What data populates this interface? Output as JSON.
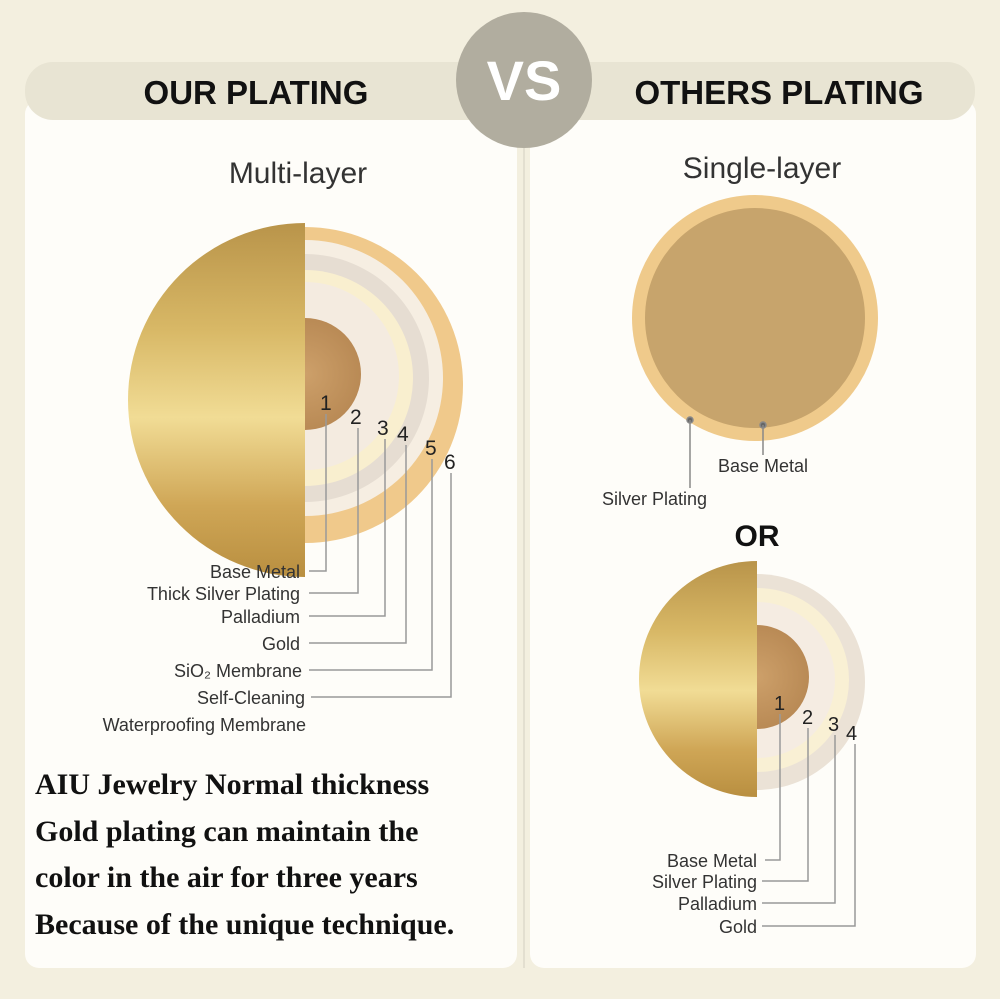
{
  "header": {
    "left_title": "OUR PLATING",
    "vs": "VS",
    "right_title": "OTHERS PLATING"
  },
  "left": {
    "subtitle": "Multi-layer",
    "numbers": [
      "1",
      "2",
      "3",
      "4",
      "5",
      "6"
    ],
    "layers": [
      "Base Metal",
      "Thick Silver Plating",
      "Palladium",
      "Gold",
      "SiO₂ Membrane",
      "Self-Cleaning",
      "Waterproofing Membrane"
    ]
  },
  "right": {
    "subtitle": "Single-layer",
    "single_labels": [
      "Base Metal",
      "Silver Plating"
    ],
    "or": "OR",
    "numbers": [
      "1",
      "2",
      "3",
      "4"
    ],
    "layers": [
      "Base Metal",
      "Silver Plating",
      "Palladium",
      "Gold"
    ]
  },
  "description": [
    "AIU Jewelry Normal thickness",
    "Gold plating can maintain the",
    "color in the air for three years",
    "Because of the unique technique."
  ],
  "colors": {
    "background": "#f3efdf",
    "panel": "#fefdf9",
    "header_bar": "#e8e4d3",
    "vs_circle": "#b1ad9f",
    "gold": "#d9b660",
    "outer_ring": "#f0c98b",
    "base_metal": "#c49a62"
  }
}
